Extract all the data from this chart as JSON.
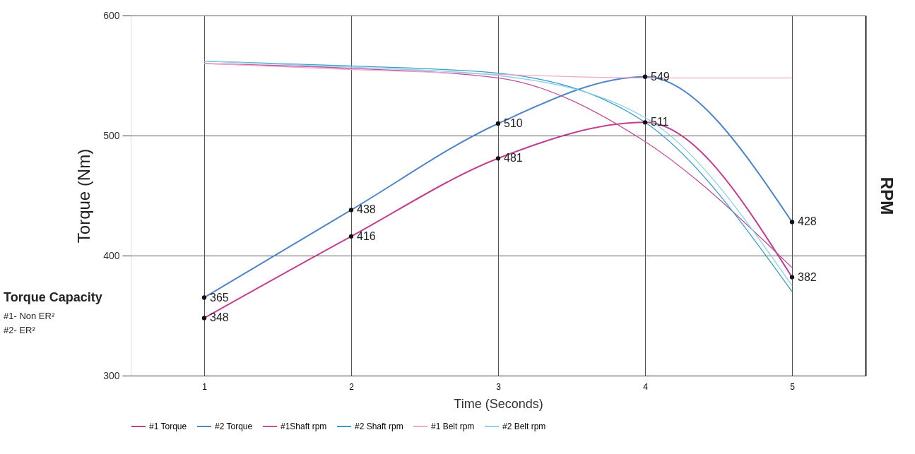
{
  "chart_data": {
    "type": "line",
    "categories": [
      "1",
      "2",
      "3",
      "4",
      "5"
    ],
    "xlabel": "Time (Seconds)",
    "ylabel": "Torque (Nm)",
    "y2label": "RPM",
    "ylim": [
      300,
      600
    ],
    "yticks": [
      300,
      400,
      500,
      600
    ],
    "grid": true,
    "legend": "bottom",
    "line_style": "solid",
    "annotations": [
      "Torque Capacity",
      "#1- Non ER²",
      "#2- ER²"
    ],
    "series": [
      {
        "name": "#1 Torque",
        "color": "#c2408f",
        "marker": "circle",
        "values": [
          348,
          416,
          481,
          511,
          382
        ],
        "value_labels": [
          "348",
          "416",
          "481",
          "511",
          "382"
        ]
      },
      {
        "name": "#2 Torque",
        "color": "#4f86c6",
        "marker": "circle",
        "values": [
          365,
          438,
          510,
          549,
          428
        ],
        "value_labels": [
          "365",
          "438",
          "510",
          "549",
          "428"
        ]
      },
      {
        "name": "#1Shaft rpm",
        "color": "#c0509a",
        "marker": "none",
        "values": [
          560,
          556,
          548,
          495,
          390
        ]
      },
      {
        "name": "#2 Shaft rpm",
        "color": "#3a9cc8",
        "marker": "none",
        "values": [
          562,
          558,
          552,
          511,
          370
        ]
      },
      {
        "name": "#1 Belt rpm",
        "color": "#f0a8cc",
        "marker": "none",
        "values": [
          560,
          555,
          551,
          548,
          548
        ]
      },
      {
        "name": "#2 Belt rpm",
        "color": "#8fd0e8",
        "marker": "none",
        "values": [
          562,
          557,
          550,
          515,
          375
        ]
      }
    ]
  }
}
